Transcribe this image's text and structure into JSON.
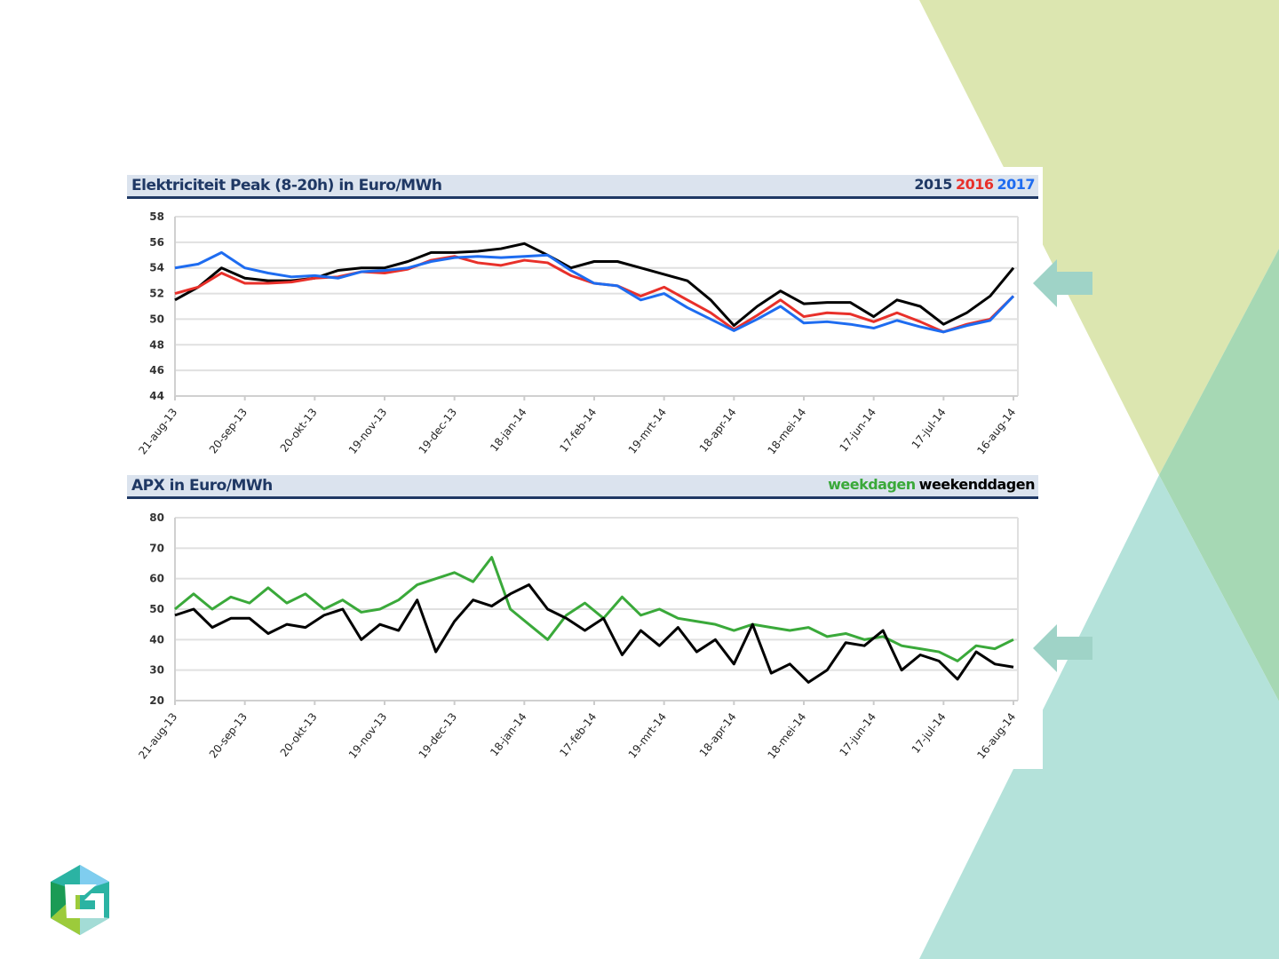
{
  "colors": {
    "c2015": "#000000",
    "c2016": "#e8302a",
    "c2017": "#1e6cf0",
    "weekday": "#3aa93a",
    "weekend": "#000000",
    "navy": "#1f3864",
    "arrow": "#9fd3c7"
  },
  "chart_data": [
    {
      "type": "line",
      "title": "Elektriciteit Peak (8-20h) in Euro/MWh",
      "legend": [
        "2015",
        "2016",
        "2017"
      ],
      "legend_placement": "top-right",
      "x_days": [
        0,
        10,
        20,
        30,
        40,
        50,
        60,
        70,
        80,
        90,
        100,
        110,
        120,
        130,
        140,
        150,
        160,
        170,
        180,
        190,
        200,
        210,
        220,
        230,
        240,
        250,
        260,
        270,
        280,
        290,
        300,
        310,
        320,
        330,
        340,
        350,
        360
      ],
      "xlim": [
        0,
        360
      ],
      "x_ticks": [
        "21-aug-13",
        "20-sep-13",
        "20-okt-13",
        "19-nov-13",
        "19-dec-13",
        "18-jan-14",
        "17-feb-14",
        "19-mrt-14",
        "18-apr-14",
        "18-mei-14",
        "17-jun-14",
        "17-jul-14",
        "16-aug-14"
      ],
      "ylim": [
        44,
        58
      ],
      "y_ticks": [
        "44",
        "46",
        "48",
        "50",
        "52",
        "54",
        "56",
        "58"
      ],
      "grid": true,
      "series": [
        {
          "name": "2015",
          "color": "#000000",
          "values": [
            51.5,
            52.5,
            54,
            53.2,
            53,
            53,
            53.2,
            53.8,
            54,
            54,
            54.5,
            55.2,
            55.2,
            55.3,
            55.5,
            55.9,
            55,
            54,
            54.5,
            54.5,
            54,
            53.5,
            53,
            51.5,
            49.5,
            51,
            52.2,
            51.2,
            51.3,
            51.3,
            50.2,
            51.5,
            51,
            49.6,
            50.5,
            51.8,
            54
          ]
        },
        {
          "name": "2016",
          "color": "#e8302a",
          "values": [
            52,
            52.5,
            53.6,
            52.8,
            52.8,
            52.9,
            53.2,
            53.3,
            53.7,
            53.6,
            53.9,
            54.6,
            54.9,
            54.4,
            54.2,
            54.6,
            54.4,
            53.4,
            52.8,
            52.6,
            51.8,
            52.5,
            51.5,
            50.5,
            49.2,
            50.3,
            51.5,
            50.2,
            50.5,
            50.4,
            49.8,
            50.5,
            49.8,
            49,
            49.6,
            50,
            51.8
          ]
        },
        {
          "name": "2017",
          "color": "#1e6cf0",
          "values": [
            54,
            54.3,
            55.2,
            54,
            53.6,
            53.3,
            53.4,
            53.2,
            53.7,
            53.8,
            54,
            54.5,
            54.8,
            54.9,
            54.8,
            54.9,
            55,
            53.8,
            52.8,
            52.6,
            51.5,
            52,
            50.9,
            50,
            49.1,
            50,
            51,
            49.7,
            49.8,
            49.6,
            49.3,
            49.9,
            49.4,
            49,
            49.5,
            49.9,
            51.8
          ]
        }
      ]
    },
    {
      "type": "line",
      "title": "APX in Euro/MWh",
      "legend": [
        "weekdagen",
        "weekenddagen"
      ],
      "legend_placement": "top-right",
      "x_days": [
        0,
        8,
        16,
        24,
        32,
        40,
        48,
        56,
        64,
        72,
        80,
        88,
        96,
        104,
        112,
        120,
        128,
        136,
        144,
        152,
        160,
        168,
        176,
        184,
        192,
        200,
        208,
        216,
        224,
        232,
        240,
        248,
        256,
        264,
        272,
        280,
        288,
        296,
        304,
        312,
        320,
        328,
        336,
        344,
        352,
        360
      ],
      "xlim": [
        0,
        360
      ],
      "x_ticks": [
        "21-aug-13",
        "20-sep-13",
        "20-okt-13",
        "19-nov-13",
        "19-dec-13",
        "18-jan-14",
        "17-feb-14",
        "19-mrt-14",
        "18-apr-14",
        "18-mei-14",
        "17-jun-14",
        "17-jul-14",
        "16-aug-14"
      ],
      "ylim": [
        20,
        80
      ],
      "y_ticks": [
        "20",
        "30",
        "40",
        "50",
        "60",
        "70",
        "80"
      ],
      "grid": true,
      "series": [
        {
          "name": "weekdagen",
          "color": "#3aa93a",
          "values": [
            50,
            55,
            50,
            54,
            52,
            57,
            52,
            55,
            50,
            53,
            49,
            50,
            53,
            58,
            60,
            62,
            59,
            67,
            50,
            45,
            40,
            48,
            52,
            47,
            54,
            48,
            50,
            47,
            46,
            45,
            43,
            45,
            44,
            43,
            44,
            41,
            42,
            40,
            41,
            38,
            37,
            36,
            33,
            38,
            37,
            40
          ]
        },
        {
          "name": "weekenddagen",
          "color": "#000000",
          "values": [
            48,
            50,
            44,
            47,
            47,
            42,
            45,
            44,
            48,
            50,
            40,
            45,
            43,
            53,
            36,
            46,
            53,
            51,
            55,
            58,
            50,
            47,
            43,
            47,
            35,
            43,
            38,
            44,
            36,
            40,
            32,
            45,
            29,
            32,
            26,
            30,
            39,
            38,
            43,
            30,
            35,
            33,
            27,
            36,
            32,
            31
          ]
        }
      ]
    }
  ]
}
